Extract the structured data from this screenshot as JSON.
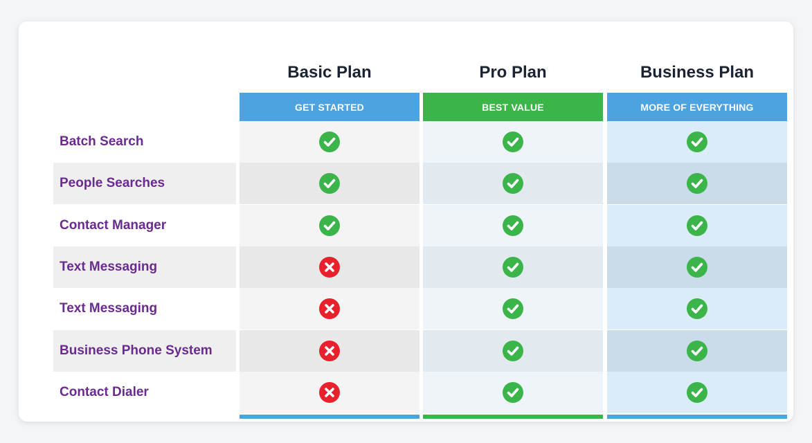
{
  "colors": {
    "basic_accent": "#4da3df",
    "pro_accent": "#3bb54a",
    "business_accent": "#4da3df",
    "check": "#3bb54a",
    "cross": "#e8212d",
    "feature_label": "#6a2a90",
    "heading": "#1c2333"
  },
  "plans": [
    {
      "key": "basic",
      "name": "Basic Plan",
      "banner": "GET STARTED"
    },
    {
      "key": "pro",
      "name": "Pro Plan",
      "banner": "BEST VALUE"
    },
    {
      "key": "business",
      "name": "Business Plan",
      "banner": "MORE OF EVERYTHING"
    }
  ],
  "features": [
    {
      "label": "Batch Search",
      "basic": "check",
      "pro": "check",
      "business": "check"
    },
    {
      "label": "People Searches",
      "basic": "check",
      "pro": "check",
      "business": "check"
    },
    {
      "label": "Contact Manager",
      "basic": "check",
      "pro": "check",
      "business": "check"
    },
    {
      "label": "Text Messaging",
      "basic": "cross",
      "pro": "check",
      "business": "check"
    },
    {
      "label": "Text Messaging",
      "basic": "cross",
      "pro": "check",
      "business": "check"
    },
    {
      "label": "Business Phone System",
      "basic": "cross",
      "pro": "check",
      "business": "check"
    },
    {
      "label": "Contact Dialer",
      "basic": "cross",
      "pro": "check",
      "business": "check"
    }
  ]
}
